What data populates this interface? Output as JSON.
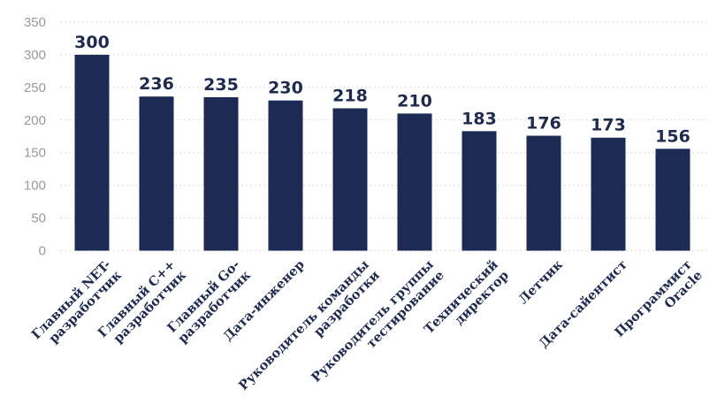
{
  "chart_data": {
    "type": "bar",
    "title": "",
    "xlabel": "",
    "ylabel": "",
    "ylim": [
      0,
      350
    ],
    "yticks": [
      0,
      50,
      100,
      150,
      200,
      250,
      300,
      350
    ],
    "grid": true,
    "bar_color": "#1c2a54",
    "categories": [
      [
        "Главный NET-",
        "разработчик"
      ],
      [
        "Главный C++",
        "разработчик"
      ],
      [
        "Главный Go-",
        "разработчик"
      ],
      [
        "Дата-инженер"
      ],
      [
        "Руководитель команды",
        "разработки"
      ],
      [
        "Руководитель группы",
        "тестирование"
      ],
      [
        "Технический",
        "директор"
      ],
      [
        "Летчик"
      ],
      [
        "Дата-сайентист"
      ],
      [
        "Программист",
        "Oracle"
      ]
    ],
    "values": [
      300,
      236,
      235,
      230,
      218,
      210,
      183,
      176,
      173,
      156
    ]
  }
}
